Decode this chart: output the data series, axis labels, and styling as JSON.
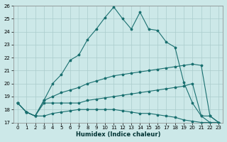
{
  "xlabel": "Humidex (Indice chaleur)",
  "background_color": "#cce8e8",
  "grid_color": "#aacccc",
  "line_color": "#1a7070",
  "x_values": [
    0,
    1,
    2,
    3,
    4,
    5,
    6,
    7,
    8,
    9,
    10,
    11,
    12,
    13,
    14,
    15,
    16,
    17,
    18,
    19,
    20,
    21,
    22,
    23
  ],
  "line1_y": [
    18.5,
    17.8,
    17.5,
    18.7,
    20.0,
    20.7,
    21.8,
    22.2,
    23.4,
    24.2,
    25.1,
    25.9,
    25.0,
    24.2,
    25.5,
    24.2,
    24.1,
    23.2,
    22.8,
    20.1,
    18.5,
    17.5,
    17.0,
    17.0
  ],
  "line2_y": [
    18.5,
    17.8,
    17.5,
    18.7,
    19.0,
    19.3,
    19.5,
    19.7,
    20.0,
    20.2,
    20.4,
    20.6,
    20.7,
    20.8,
    20.9,
    21.0,
    21.1,
    21.2,
    21.3,
    21.4,
    21.5,
    21.4,
    17.5,
    17.0
  ],
  "line3_y": [
    18.5,
    17.8,
    17.5,
    18.5,
    18.5,
    18.5,
    18.5,
    18.5,
    18.7,
    18.8,
    18.9,
    19.0,
    19.1,
    19.2,
    19.3,
    19.4,
    19.5,
    19.6,
    19.7,
    19.8,
    20.0,
    17.5,
    17.5,
    17.0
  ],
  "line4_y": [
    18.5,
    17.8,
    17.5,
    17.5,
    17.7,
    17.8,
    17.9,
    18.0,
    18.0,
    18.0,
    18.0,
    18.0,
    17.9,
    17.8,
    17.7,
    17.7,
    17.6,
    17.5,
    17.4,
    17.2,
    17.1,
    17.0,
    17.0,
    17.0
  ],
  "ylim": [
    17,
    26
  ],
  "xlim": [
    -0.5,
    23.5
  ],
  "yticks": [
    17,
    18,
    19,
    20,
    21,
    22,
    23,
    24,
    25,
    26
  ],
  "xticks": [
    0,
    1,
    2,
    3,
    4,
    5,
    6,
    7,
    8,
    9,
    10,
    11,
    12,
    13,
    14,
    15,
    16,
    17,
    18,
    19,
    20,
    21,
    22,
    23
  ]
}
